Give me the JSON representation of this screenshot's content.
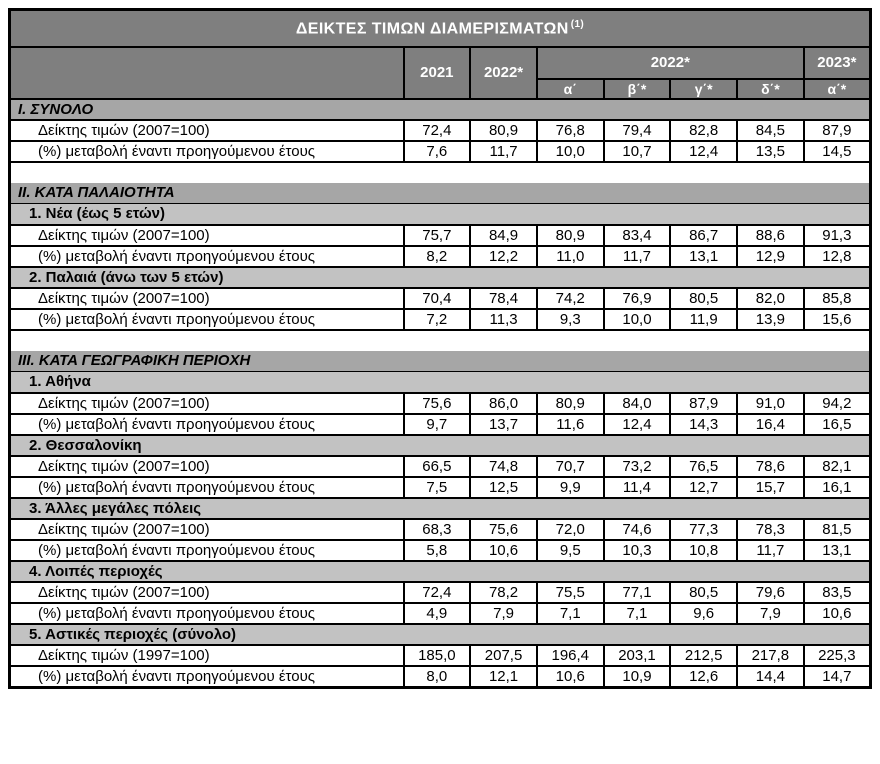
{
  "colors": {
    "header_bg": "#7f7f7f",
    "section_bg": "#a6a6a6",
    "subsection_bg": "#c2c2c2",
    "header_text": "#ffffff",
    "body_text": "#000000",
    "border": "#000000"
  },
  "table": {
    "title": "ΔΕΙΚΤΕΣ ΤΙΜΩΝ ΔΙΑΜΕΡΙΣΜΑΤΩΝ",
    "title_note": "(1)",
    "columns": {
      "groups": [
        {
          "label": "2021",
          "children": null
        },
        {
          "label": "2022*",
          "children": null
        },
        {
          "label": "2022*",
          "children": [
            "α΄",
            "β΄*",
            "γ΄*",
            "δ΄*"
          ]
        },
        {
          "label": "2023*",
          "children": [
            "α΄*"
          ]
        }
      ]
    },
    "sections": [
      {
        "heading": "I. ΣΥΝΟΛΟ",
        "groups": [
          {
            "subheading": null,
            "rows": [
              {
                "label": "Δείκτης τιμών (2007=100)",
                "values": [
                  "72,4",
                  "80,9",
                  "76,8",
                  "79,4",
                  "82,8",
                  "84,5",
                  "87,9"
                ]
              },
              {
                "label": "(%) μεταβολή έναντι προηγούμενου έτους",
                "values": [
                  "7,6",
                  "11,7",
                  "10,0",
                  "10,7",
                  "12,4",
                  "13,5",
                  "14,5"
                ]
              }
            ]
          }
        ]
      },
      {
        "heading": "II. ΚΑΤΑ ΠΑΛΑΙΟΤΗΤΑ",
        "groups": [
          {
            "subheading": "1.  Νέα (έως 5 ετών)",
            "rows": [
              {
                "label": "Δείκτης τιμών (2007=100)",
                "values": [
                  "75,7",
                  "84,9",
                  "80,9",
                  "83,4",
                  "86,7",
                  "88,6",
                  "91,3"
                ]
              },
              {
                "label": "(%) μεταβολή έναντι προηγούμενου έτους",
                "values": [
                  "8,2",
                  "12,2",
                  "11,0",
                  "11,7",
                  "13,1",
                  "12,9",
                  "12,8"
                ]
              }
            ]
          },
          {
            "subheading": "2. Παλαιά (άνω των 5 ετών)",
            "rows": [
              {
                "label": "Δείκτης τιμών (2007=100)",
                "values": [
                  "70,4",
                  "78,4",
                  "74,2",
                  "76,9",
                  "80,5",
                  "82,0",
                  "85,8"
                ]
              },
              {
                "label": "(%) μεταβολή έναντι προηγούμενου έτους",
                "values": [
                  "7,2",
                  "11,3",
                  "9,3",
                  "10,0",
                  "11,9",
                  "13,9",
                  "15,6"
                ]
              }
            ]
          }
        ]
      },
      {
        "heading": "III. ΚΑΤΑ ΓΕΩΓΡΑΦΙΚΗ ΠΕΡΙΟΧΗ",
        "groups": [
          {
            "subheading": "1.  Αθήνα",
            "rows": [
              {
                "label": "Δείκτης τιμών (2007=100)",
                "values": [
                  "75,6",
                  "86,0",
                  "80,9",
                  "84,0",
                  "87,9",
                  "91,0",
                  "94,2"
                ]
              },
              {
                "label": "(%) μεταβολή έναντι προηγούμενου έτους",
                "values": [
                  "9,7",
                  "13,7",
                  "11,6",
                  "12,4",
                  "14,3",
                  "16,4",
                  "16,5"
                ]
              }
            ]
          },
          {
            "subheading": "2.  Θεσσαλονίκη",
            "rows": [
              {
                "label": "Δείκτης τιμών (2007=100)",
                "values": [
                  "66,5",
                  "74,8",
                  "70,7",
                  "73,2",
                  "76,5",
                  "78,6",
                  "82,1"
                ]
              },
              {
                "label": "(%) μεταβολή έναντι προηγούμενου έτους",
                "values": [
                  "7,5",
                  "12,5",
                  "9,9",
                  "11,4",
                  "12,7",
                  "15,7",
                  "16,1"
                ]
              }
            ]
          },
          {
            "subheading": "3.  Άλλες μεγάλες πόλεις",
            "rows": [
              {
                "label": "Δείκτης τιμών (2007=100)",
                "values": [
                  "68,3",
                  "75,6",
                  "72,0",
                  "74,6",
                  "77,3",
                  "78,3",
                  "81,5"
                ]
              },
              {
                "label": "(%) μεταβολή έναντι προηγούμενου έτους",
                "values": [
                  "5,8",
                  "10,6",
                  "9,5",
                  "10,3",
                  "10,8",
                  "11,7",
                  "13,1"
                ]
              }
            ]
          },
          {
            "subheading": "4.  Λοιπές περιοχές",
            "rows": [
              {
                "label": "Δείκτης τιμών (2007=100)",
                "values": [
                  "72,4",
                  "78,2",
                  "75,5",
                  "77,1",
                  "80,5",
                  "79,6",
                  "83,5"
                ]
              },
              {
                "label": "(%) μεταβολή έναντι προηγούμενου έτους",
                "values": [
                  "4,9",
                  "7,9",
                  "7,1",
                  "7,1",
                  "9,6",
                  "7,9",
                  "10,6"
                ]
              }
            ]
          },
          {
            "subheading": "5.  Αστικές περιοχές (σύνολο)",
            "rows": [
              {
                "label": "Δείκτης τιμών (1997=100)",
                "values": [
                  "185,0",
                  "207,5",
                  "196,4",
                  "203,1",
                  "212,5",
                  "217,8",
                  "225,3"
                ]
              },
              {
                "label": "(%) μεταβολή έναντι προηγούμενου έτους",
                "values": [
                  "8,0",
                  "12,1",
                  "10,6",
                  "10,9",
                  "12,6",
                  "14,4",
                  "14,7"
                ]
              }
            ]
          }
        ]
      }
    ]
  }
}
